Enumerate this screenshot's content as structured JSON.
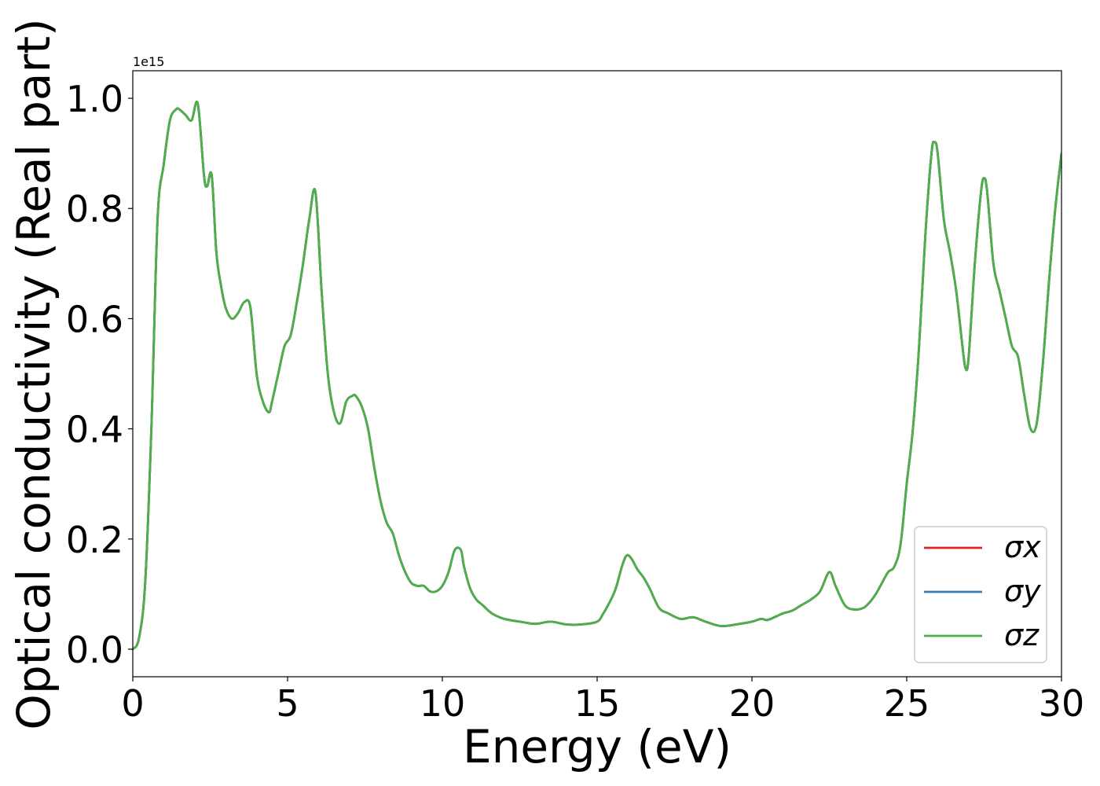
{
  "chart_data": {
    "type": "line",
    "title": "",
    "xlabel": "Energy (eV)",
    "ylabel": "Optical conductivity (Real part)",
    "y_offset_label": "1e15",
    "xlim": [
      0,
      30
    ],
    "ylim": [
      -0.05,
      1.05
    ],
    "x_ticks": [
      0,
      5,
      10,
      15,
      20,
      25,
      30
    ],
    "x_tick_labels": [
      "0",
      "5",
      "10",
      "15",
      "20",
      "25",
      "30"
    ],
    "y_ticks": [
      0.0,
      0.2,
      0.4,
      0.6,
      0.8,
      1.0
    ],
    "y_tick_labels": [
      "0.0",
      "0.2",
      "0.4",
      "0.6",
      "0.8",
      "1.0"
    ],
    "grid": false,
    "legend_position": "lower-right",
    "x": [
      0,
      0.2,
      0.4,
      0.6,
      0.8,
      1.0,
      1.2,
      1.4,
      1.5,
      1.7,
      1.9,
      2.1,
      2.3,
      2.4,
      2.55,
      2.7,
      2.85,
      3.0,
      3.2,
      3.4,
      3.6,
      3.8,
      4.0,
      4.2,
      4.4,
      4.5,
      4.7,
      4.9,
      5.1,
      5.3,
      5.5,
      5.7,
      5.9,
      6.1,
      6.3,
      6.5,
      6.7,
      6.9,
      7.1,
      7.2,
      7.4,
      7.6,
      7.8,
      8.0,
      8.2,
      8.4,
      8.6,
      8.8,
      9.0,
      9.2,
      9.4,
      9.6,
      9.8,
      10.0,
      10.2,
      10.4,
      10.6,
      10.7,
      10.9,
      11.1,
      11.3,
      11.6,
      12.0,
      12.5,
      13.0,
      13.5,
      14.0,
      14.5,
      15.0,
      15.2,
      15.4,
      15.6,
      15.8,
      15.95,
      16.1,
      16.3,
      16.5,
      16.7,
      17.0,
      17.3,
      17.7,
      18.1,
      18.5,
      19.0,
      19.5,
      20.0,
      20.3,
      20.5,
      20.8,
      21.0,
      21.3,
      21.6,
      21.9,
      22.2,
      22.5,
      22.7,
      23.0,
      23.3,
      23.6,
      23.8,
      24.0,
      24.2,
      24.4,
      24.6,
      24.8,
      25.0,
      25.2,
      25.4,
      25.6,
      25.8,
      25.9,
      26.0,
      26.2,
      26.4,
      26.6,
      26.8,
      26.9,
      27.0,
      27.2,
      27.4,
      27.5,
      27.6,
      27.8,
      28.0,
      28.2,
      28.4,
      28.6,
      28.8,
      29.0,
      29.2,
      29.4,
      29.6,
      29.8,
      30.0
    ],
    "series": [
      {
        "name": "σx",
        "color": "#d62728",
        "values": [
          0.0,
          0.02,
          0.12,
          0.4,
          0.78,
          0.88,
          0.96,
          0.98,
          0.98,
          0.97,
          0.96,
          0.99,
          0.86,
          0.84,
          0.86,
          0.72,
          0.66,
          0.62,
          0.6,
          0.61,
          0.63,
          0.62,
          0.5,
          0.45,
          0.43,
          0.45,
          0.5,
          0.55,
          0.57,
          0.63,
          0.7,
          0.78,
          0.83,
          0.65,
          0.5,
          0.43,
          0.41,
          0.45,
          0.46,
          0.46,
          0.44,
          0.4,
          0.33,
          0.27,
          0.23,
          0.21,
          0.17,
          0.14,
          0.12,
          0.115,
          0.115,
          0.105,
          0.105,
          0.115,
          0.14,
          0.18,
          0.18,
          0.15,
          0.11,
          0.09,
          0.08,
          0.065,
          0.055,
          0.05,
          0.046,
          0.05,
          0.045,
          0.045,
          0.05,
          0.065,
          0.085,
          0.11,
          0.15,
          0.17,
          0.165,
          0.145,
          0.13,
          0.11,
          0.075,
          0.065,
          0.055,
          0.058,
          0.05,
          0.042,
          0.045,
          0.05,
          0.055,
          0.053,
          0.06,
          0.065,
          0.07,
          0.08,
          0.09,
          0.105,
          0.14,
          0.115,
          0.08,
          0.072,
          0.075,
          0.085,
          0.1,
          0.12,
          0.14,
          0.15,
          0.19,
          0.3,
          0.4,
          0.55,
          0.75,
          0.9,
          0.92,
          0.9,
          0.78,
          0.72,
          0.65,
          0.55,
          0.51,
          0.53,
          0.7,
          0.83,
          0.855,
          0.83,
          0.7,
          0.65,
          0.6,
          0.55,
          0.53,
          0.46,
          0.4,
          0.41,
          0.52,
          0.67,
          0.8,
          0.9
        ]
      },
      {
        "name": "σy",
        "color": "#377eb8",
        "values": [
          0.0,
          0.02,
          0.12,
          0.4,
          0.78,
          0.88,
          0.96,
          0.98,
          0.98,
          0.97,
          0.96,
          0.99,
          0.86,
          0.84,
          0.86,
          0.72,
          0.66,
          0.62,
          0.6,
          0.61,
          0.63,
          0.62,
          0.5,
          0.45,
          0.43,
          0.45,
          0.5,
          0.55,
          0.57,
          0.63,
          0.7,
          0.78,
          0.83,
          0.65,
          0.5,
          0.43,
          0.41,
          0.45,
          0.46,
          0.46,
          0.44,
          0.4,
          0.33,
          0.27,
          0.23,
          0.21,
          0.17,
          0.14,
          0.12,
          0.115,
          0.115,
          0.105,
          0.105,
          0.115,
          0.14,
          0.18,
          0.18,
          0.15,
          0.11,
          0.09,
          0.08,
          0.065,
          0.055,
          0.05,
          0.046,
          0.05,
          0.045,
          0.045,
          0.05,
          0.065,
          0.085,
          0.11,
          0.15,
          0.17,
          0.165,
          0.145,
          0.13,
          0.11,
          0.075,
          0.065,
          0.055,
          0.058,
          0.05,
          0.042,
          0.045,
          0.05,
          0.055,
          0.053,
          0.06,
          0.065,
          0.07,
          0.08,
          0.09,
          0.105,
          0.14,
          0.115,
          0.08,
          0.072,
          0.075,
          0.085,
          0.1,
          0.12,
          0.14,
          0.15,
          0.19,
          0.3,
          0.4,
          0.55,
          0.75,
          0.9,
          0.92,
          0.9,
          0.78,
          0.72,
          0.65,
          0.55,
          0.51,
          0.53,
          0.7,
          0.83,
          0.855,
          0.83,
          0.7,
          0.65,
          0.6,
          0.55,
          0.53,
          0.46,
          0.4,
          0.41,
          0.52,
          0.67,
          0.8,
          0.9
        ]
      },
      {
        "name": "σz",
        "color": "#4daf4a",
        "values": [
          0.0,
          0.02,
          0.12,
          0.4,
          0.78,
          0.88,
          0.96,
          0.98,
          0.98,
          0.97,
          0.96,
          0.99,
          0.86,
          0.84,
          0.86,
          0.72,
          0.66,
          0.62,
          0.6,
          0.61,
          0.63,
          0.62,
          0.5,
          0.45,
          0.43,
          0.45,
          0.5,
          0.55,
          0.57,
          0.63,
          0.7,
          0.78,
          0.83,
          0.65,
          0.5,
          0.43,
          0.41,
          0.45,
          0.46,
          0.46,
          0.44,
          0.4,
          0.33,
          0.27,
          0.23,
          0.21,
          0.17,
          0.14,
          0.12,
          0.115,
          0.115,
          0.105,
          0.105,
          0.115,
          0.14,
          0.18,
          0.18,
          0.15,
          0.11,
          0.09,
          0.08,
          0.065,
          0.055,
          0.05,
          0.046,
          0.05,
          0.045,
          0.045,
          0.05,
          0.065,
          0.085,
          0.11,
          0.15,
          0.17,
          0.165,
          0.145,
          0.13,
          0.11,
          0.075,
          0.065,
          0.055,
          0.058,
          0.05,
          0.042,
          0.045,
          0.05,
          0.055,
          0.053,
          0.06,
          0.065,
          0.07,
          0.08,
          0.09,
          0.105,
          0.14,
          0.115,
          0.08,
          0.072,
          0.075,
          0.085,
          0.1,
          0.12,
          0.14,
          0.15,
          0.19,
          0.3,
          0.4,
          0.55,
          0.75,
          0.9,
          0.92,
          0.9,
          0.78,
          0.72,
          0.65,
          0.55,
          0.51,
          0.53,
          0.7,
          0.83,
          0.855,
          0.83,
          0.7,
          0.65,
          0.6,
          0.55,
          0.53,
          0.46,
          0.4,
          0.41,
          0.52,
          0.67,
          0.8,
          0.9
        ]
      }
    ]
  }
}
